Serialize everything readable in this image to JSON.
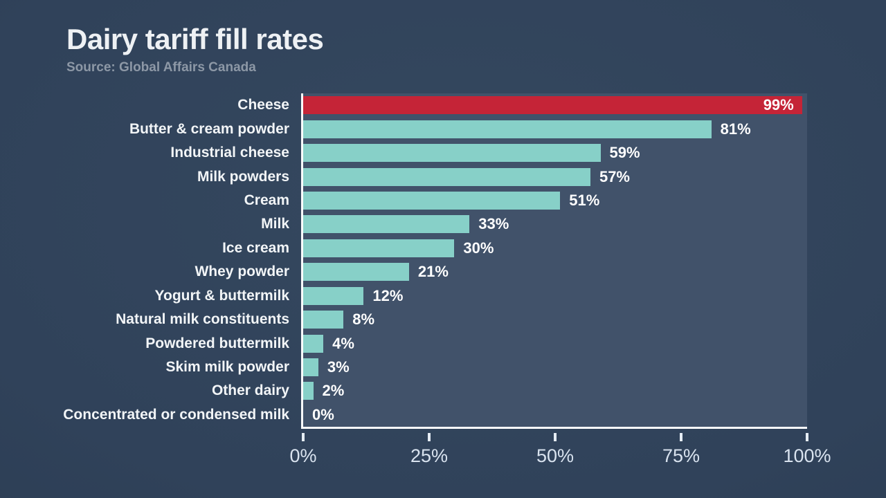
{
  "header": {
    "title": "Dairy tariff fill rates",
    "source": "Source: Global Affairs Canada"
  },
  "colors": {
    "page_bg": "#30425a",
    "plot_bg": "#41526a",
    "bar_default": "#87d0c8",
    "bar_highlight": "#c52437",
    "axis_line": "#fbfcfd",
    "label_text": "#f2f5f7",
    "value_text": "#ffffff",
    "tick_text": "#d9e3ef",
    "source_text": "#8d98a6"
  },
  "chart_data": {
    "type": "bar",
    "orientation": "horizontal",
    "title": "Dairy tariff fill rates",
    "subtitle": "Source: Global Affairs Canada",
    "xlabel": "",
    "ylabel": "",
    "xlim": [
      0,
      100
    ],
    "grid": false,
    "legend": false,
    "bars": [
      {
        "category": "Cheese",
        "value": 99,
        "label": "99%",
        "highlight": true,
        "label_inside": true
      },
      {
        "category": "Butter & cream powder",
        "value": 81,
        "label": "81%",
        "highlight": false,
        "label_inside": false
      },
      {
        "category": "Industrial cheese",
        "value": 59,
        "label": "59%",
        "highlight": false,
        "label_inside": false
      },
      {
        "category": "Milk powders",
        "value": 57,
        "label": "57%",
        "highlight": false,
        "label_inside": false
      },
      {
        "category": "Cream",
        "value": 51,
        "label": "51%",
        "highlight": false,
        "label_inside": false
      },
      {
        "category": "Milk",
        "value": 33,
        "label": "33%",
        "highlight": false,
        "label_inside": false
      },
      {
        "category": "Ice cream",
        "value": 30,
        "label": "30%",
        "highlight": false,
        "label_inside": false
      },
      {
        "category": "Whey powder",
        "value": 21,
        "label": "21%",
        "highlight": false,
        "label_inside": false
      },
      {
        "category": "Yogurt & buttermilk",
        "value": 12,
        "label": "12%",
        "highlight": false,
        "label_inside": false
      },
      {
        "category": "Natural milk constituents",
        "value": 8,
        "label": "8%",
        "highlight": false,
        "label_inside": false
      },
      {
        "category": "Powdered buttermilk",
        "value": 4,
        "label": "4%",
        "highlight": false,
        "label_inside": false
      },
      {
        "category": "Skim milk powder",
        "value": 3,
        "label": "3%",
        "highlight": false,
        "label_inside": false
      },
      {
        "category": "Other dairy",
        "value": 2,
        "label": "2%",
        "highlight": false,
        "label_inside": false
      },
      {
        "category": "Concentrated or condensed milk",
        "value": 0,
        "label": "0%",
        "highlight": false,
        "label_inside": false
      }
    ],
    "x_ticks": [
      {
        "value": 0,
        "label": "0%"
      },
      {
        "value": 25,
        "label": "25%"
      },
      {
        "value": 50,
        "label": "50%"
      },
      {
        "value": 75,
        "label": "75%"
      },
      {
        "value": 100,
        "label": "100%"
      }
    ]
  }
}
